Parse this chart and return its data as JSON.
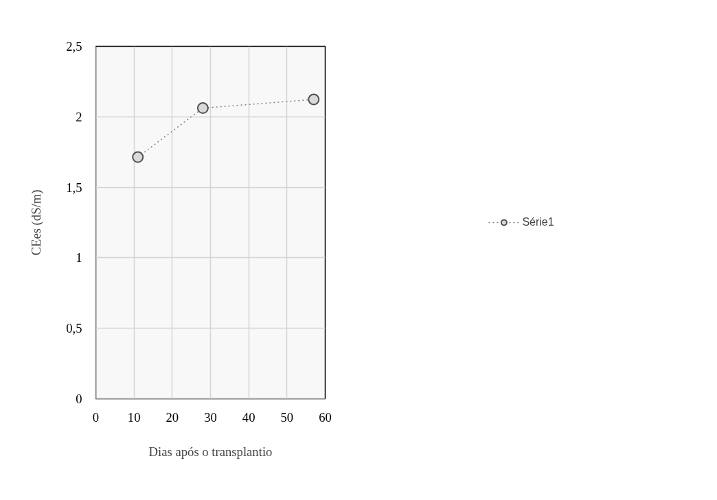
{
  "chart_data": {
    "type": "line",
    "xlabel": "Dias após o transplantio",
    "ylabel": "CEes (dS/m)",
    "x": [
      11,
      28,
      57
    ],
    "series": [
      {
        "name": "Série1",
        "color": "#7f7f7f",
        "values": [
          1.714,
          2.062,
          2.123
        ]
      }
    ],
    "xlim": [
      0,
      60
    ],
    "xticks": [
      0,
      10,
      20,
      30,
      40,
      50,
      60
    ],
    "ylim": [
      0,
      2.5
    ],
    "yticks": [
      0,
      {
        "value": 0.5,
        "label": "0,5"
      },
      1,
      {
        "value": 1.5,
        "label": "1,5"
      },
      2,
      {
        "value": 2.5,
        "label": "2,5"
      }
    ],
    "grid": true,
    "legend": "right",
    "marker": "circle",
    "line_style": "dotted"
  }
}
